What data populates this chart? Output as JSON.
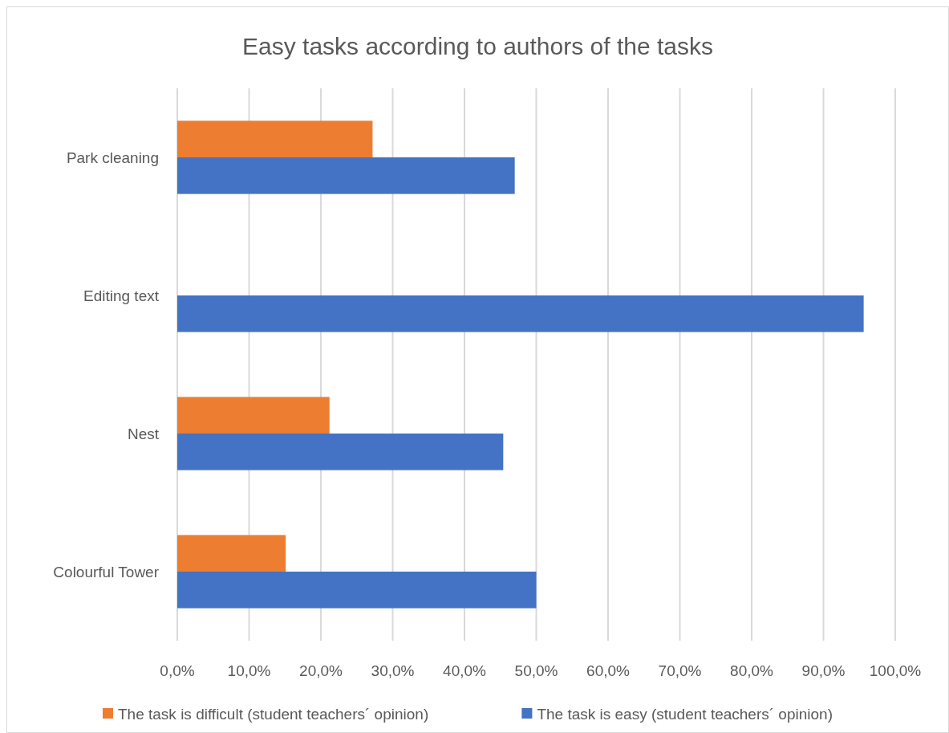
{
  "chart_data": {
    "type": "bar",
    "orientation": "horizontal",
    "title": "Easy tasks according to authors of the tasks",
    "categories": [
      "Park cleaning",
      "Editing text",
      "Nest",
      "Colourful Tower"
    ],
    "series": [
      {
        "name": "The task is difficult (student teachers´ opinion)",
        "color": "#ed7d31",
        "values": [
          27.2,
          0,
          21.2,
          15.1
        ]
      },
      {
        "name": "The task is easy (student teachers´ opinion)",
        "color": "#4472c4",
        "values": [
          47.0,
          95.6,
          45.4,
          50.0
        ]
      }
    ],
    "xlim": [
      0,
      100
    ],
    "xticks": [
      {
        "value": 0,
        "label": "0,0%"
      },
      {
        "value": 10,
        "label": "10,0%"
      },
      {
        "value": 20,
        "label": "20,0%"
      },
      {
        "value": 30,
        "label": "30,0%"
      },
      {
        "value": 40,
        "label": "40,0%"
      },
      {
        "value": 50,
        "label": "50,0%"
      },
      {
        "value": 60,
        "label": "60,0%"
      },
      {
        "value": 70,
        "label": "70,0%"
      },
      {
        "value": 80,
        "label": "80,0%"
      },
      {
        "value": 90,
        "label": "90,0%"
      },
      {
        "value": 100,
        "label": "100,0%"
      }
    ],
    "grid": "x",
    "legend": "bottom"
  }
}
